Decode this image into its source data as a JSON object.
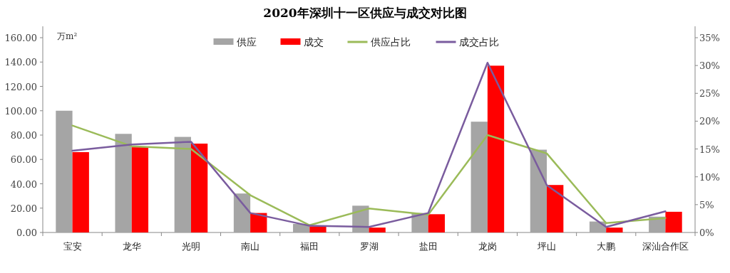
{
  "chart_data": {
    "type": "bar",
    "title": "2020年深圳十一区供应与成交对比图",
    "ylabel": "万m²",
    "categories": [
      "宝安",
      "龙华",
      "光明",
      "南山",
      "福田",
      "罗湖",
      "盐田",
      "龙岗",
      "坪山",
      "大鹏",
      "深汕合作区"
    ],
    "series": [
      {
        "name": "供应",
        "color": "#a5a5a5",
        "values": [
          100,
          81,
          78.5,
          32,
          7,
          22,
          16,
          91,
          68,
          9,
          13
        ]
      },
      {
        "name": "成交",
        "color": "#ff0000",
        "values": [
          66,
          70,
          73,
          16,
          5,
          4,
          15,
          137,
          39,
          4,
          17
        ]
      },
      {
        "name": "供应占比",
        "type": "line",
        "axis": "y2",
        "color": "#9bbb59",
        "values": [
          19.2,
          15.5,
          15,
          6.7,
          1.3,
          4.3,
          3.2,
          17.5,
          14.2,
          1.7,
          2.6
        ]
      },
      {
        "name": "成交占比",
        "type": "line",
        "axis": "y2",
        "color": "#7a5c9e",
        "values": [
          14.7,
          15.8,
          16.3,
          3.5,
          1.2,
          1.0,
          3.5,
          30.5,
          8.5,
          1.0,
          3.8
        ]
      }
    ],
    "ylim": [
      0,
      160
    ],
    "yticks": [
      {
        "value": 0,
        "label": "0.00"
      },
      {
        "value": 20,
        "label": "20.00"
      },
      {
        "value": 40,
        "label": "40.00"
      },
      {
        "value": 60,
        "label": "60.00"
      },
      {
        "value": 80,
        "label": "80.00"
      },
      {
        "value": 100,
        "label": "100.00"
      },
      {
        "value": 120,
        "label": "120.00"
      },
      {
        "value": 140,
        "label": "140.00"
      },
      {
        "value": 160,
        "label": "160.00"
      }
    ],
    "y2lim": [
      0,
      35
    ],
    "y2ticks": [
      {
        "value": 0,
        "label": "0%"
      },
      {
        "value": 5,
        "label": "5%"
      },
      {
        "value": 10,
        "label": "10%"
      },
      {
        "value": 15,
        "label": "15%"
      },
      {
        "value": 20,
        "label": "20%"
      },
      {
        "value": 25,
        "label": "25%"
      },
      {
        "value": 30,
        "label": "30%"
      },
      {
        "value": 35,
        "label": "35%"
      }
    ],
    "legend": "top",
    "grid": false,
    "marker": "none",
    "line_style": "solid"
  }
}
